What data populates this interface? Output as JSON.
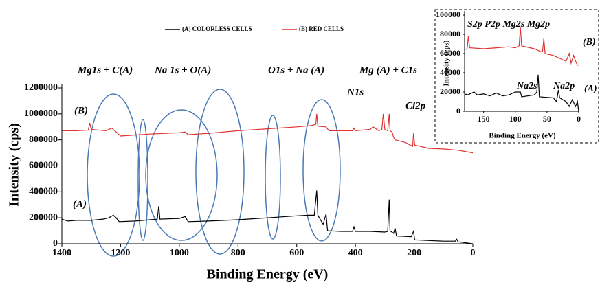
{
  "chart_data": [
    {
      "type": "line",
      "x_label": "Binding Energy (eV)",
      "y_label": "Intensity (cps)",
      "xlim": [
        1400,
        0
      ],
      "xticks": [
        1400,
        1200,
        1000,
        800,
        600,
        400,
        200,
        0
      ],
      "ylim": [
        0,
        1200000
      ],
      "yticks": [
        0,
        200000,
        400000,
        600000,
        800000,
        1000000,
        1200000
      ],
      "annotations": [
        "Mg1s + C(A)",
        "Na 1s  + O(A)",
        "O1s + Na (A)",
        "N1s",
        "Mg (A) + C1s",
        "Cl2p",
        "(B)",
        "(A)"
      ],
      "legend": "top",
      "series": [
        {
          "name": "(A)  COLORLESS CELLS",
          "color": "#000000",
          "x": [
            1400,
            1380,
            1350,
            1300,
            1260,
            1240,
            1225,
            1215,
            1205,
            1150,
            1100,
            1075,
            1070,
            1066,
            1000,
            980,
            970,
            900,
            800,
            700,
            600,
            560,
            540,
            532,
            528,
            510,
            500,
            495,
            450,
            410,
            405,
            400,
            350,
            300,
            290,
            285,
            282,
            270,
            265,
            260,
            210,
            202,
            198,
            150,
            100,
            60,
            55,
            50,
            0
          ],
          "values": [
            190000,
            175000,
            180000,
            180000,
            190000,
            200000,
            220000,
            200000,
            170000,
            175000,
            185000,
            190000,
            290000,
            190000,
            195000,
            210000,
            170000,
            175000,
            185000,
            200000,
            215000,
            220000,
            220000,
            410000,
            220000,
            150000,
            230000,
            100000,
            95000,
            95000,
            130000,
            95000,
            95000,
            90000,
            95000,
            340000,
            100000,
            80000,
            120000,
            60000,
            55000,
            95000,
            30000,
            25000,
            20000,
            20000,
            35000,
            15000,
            0
          ]
        },
        {
          "name": "(B) RED CELLS",
          "color": "#e03030",
          "x": [
            1400,
            1350,
            1310,
            1305,
            1300,
            1250,
            1230,
            1220,
            1200,
            1100,
            1000,
            980,
            970,
            900,
            800,
            700,
            600,
            550,
            535,
            532,
            528,
            500,
            490,
            410,
            405,
            400,
            350,
            340,
            320,
            310,
            305,
            300,
            290,
            285,
            282,
            275,
            270,
            265,
            230,
            205,
            202,
            198,
            150,
            100,
            50,
            0
          ],
          "values": [
            870000,
            870000,
            875000,
            930000,
            880000,
            870000,
            890000,
            870000,
            830000,
            845000,
            855000,
            860000,
            840000,
            850000,
            870000,
            885000,
            900000,
            910000,
            920000,
            1000000,
            905000,
            900000,
            870000,
            870000,
            890000,
            870000,
            880000,
            900000,
            870000,
            880000,
            1000000,
            880000,
            870000,
            1000000,
            870000,
            860000,
            820000,
            800000,
            780000,
            750000,
            850000,
            760000,
            735000,
            730000,
            720000,
            700000
          ]
        }
      ]
    },
    {
      "type": "line",
      "x_label": "Binding Energy (eV)",
      "y_label": "Intensity (cps)",
      "xlim": [
        180,
        0
      ],
      "xticks": [
        150,
        100,
        50,
        0
      ],
      "ylim": [
        0,
        100000
      ],
      "yticks": [
        0,
        20000,
        40000,
        60000,
        80000,
        100000
      ],
      "annotations": [
        "S2p P2p Mg2s Mg2p",
        "Na2s",
        "Na2p",
        "(B)",
        "(A)"
      ],
      "series": [
        {
          "color": "#000000",
          "x": [
            180,
            175,
            165,
            160,
            150,
            140,
            130,
            120,
            110,
            100,
            92,
            90,
            70,
            66,
            64,
            62,
            40,
            35,
            32,
            30,
            20,
            15,
            10,
            5,
            2,
            0
          ],
          "values": [
            18000,
            17000,
            20000,
            17000,
            18000,
            16000,
            19000,
            16000,
            17000,
            20000,
            20000,
            15000,
            17000,
            20000,
            38000,
            15000,
            14000,
            10000,
            22000,
            14000,
            10000,
            5000,
            12000,
            5000,
            10000,
            0
          ]
        },
        {
          "color": "#e03030",
          "x": [
            180,
            176,
            174,
            172,
            150,
            130,
            110,
            100,
            94,
            92,
            90,
            70,
            60,
            57,
            55,
            53,
            40,
            30,
            20,
            15,
            12,
            8,
            5,
            2,
            0
          ],
          "values": [
            64000,
            65000,
            78000,
            66000,
            65000,
            66000,
            67000,
            66000,
            68000,
            87000,
            68000,
            65000,
            62000,
            62000,
            76000,
            60000,
            58000,
            55000,
            52000,
            60000,
            50000,
            58000,
            52000,
            48000,
            48000
          ]
        }
      ]
    }
  ]
}
